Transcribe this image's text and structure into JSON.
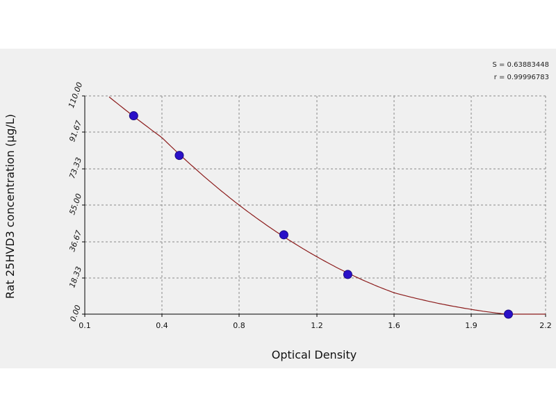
{
  "chart_data": {
    "type": "scatter",
    "xlabel": "Optical Density",
    "ylabel": "Rat 25HVD3 concentration (µg/L)",
    "x_ticks": [
      "0.1",
      "0.4",
      "0.8",
      "1.2",
      "1.6",
      "1.9",
      "2.2"
    ],
    "y_ticks": [
      "0.00",
      "18.33",
      "36.67",
      "55.00",
      "73.33",
      "91.67",
      "110.00"
    ],
    "xlim": [
      0.1,
      2.2
    ],
    "ylim": [
      0,
      110
    ],
    "grid": true,
    "points": [
      {
        "x": 0.29,
        "y": 100
      },
      {
        "x": 0.49,
        "y": 80
      },
      {
        "x": 1.03,
        "y": 40
      },
      {
        "x": 1.36,
        "y": 20
      },
      {
        "x": 2.05,
        "y": 0
      }
    ],
    "fit_curve": true,
    "colors": {
      "points": "#2a10c8",
      "curve": "#8b1a1a",
      "grid": "#888888"
    },
    "stats": {
      "s": "S = 0.63883448",
      "r": "r = 0.99996783"
    }
  }
}
